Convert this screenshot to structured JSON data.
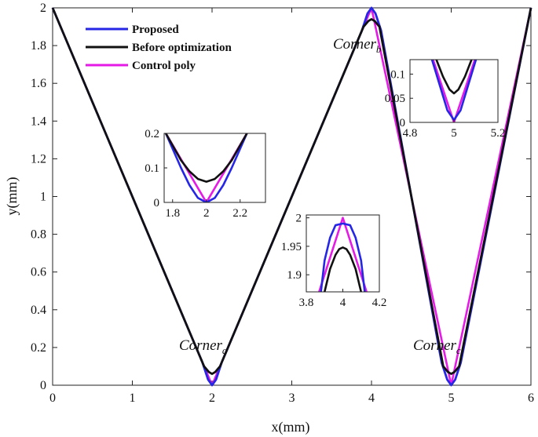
{
  "chart_data": {
    "type": "line",
    "title": "",
    "xlabel": "x(mm)",
    "ylabel": "y(mm)",
    "xlim": [
      0,
      6
    ],
    "ylim": [
      0,
      2
    ],
    "xticks": [
      "0",
      "1",
      "2",
      "3",
      "4",
      "5",
      "6"
    ],
    "yticks": [
      "0",
      "0.2",
      "0.4",
      "0.6",
      "0.8",
      "1",
      "1.2",
      "1.4",
      "1.6",
      "1.8",
      "2"
    ],
    "grid": false,
    "legend_position": "top-left",
    "series": [
      {
        "name": "Proposed",
        "color": "#2626e6",
        "x": [
          0,
          1.88,
          1.95,
          2,
          2.05,
          2.12,
          3.88,
          3.95,
          4,
          4.05,
          4.12,
          4.88,
          4.95,
          5,
          5.05,
          5.12,
          6
        ],
        "y": [
          2,
          0.12,
          0.03,
          0,
          0.03,
          0.12,
          1.88,
          1.97,
          2,
          1.97,
          1.88,
          0.12,
          0.03,
          0,
          0.03,
          0.12,
          2
        ]
      },
      {
        "name": "Before optimization",
        "color": "#111111",
        "x": [
          0,
          1.9,
          1.96,
          2,
          2.04,
          2.1,
          3.9,
          3.96,
          4,
          4.04,
          4.1,
          4.9,
          4.96,
          5,
          5.04,
          5.1,
          6
        ],
        "y": [
          2,
          0.1,
          0.07,
          0.06,
          0.07,
          0.1,
          1.9,
          1.93,
          1.94,
          1.93,
          1.9,
          0.1,
          0.07,
          0.06,
          0.07,
          0.1,
          2
        ]
      },
      {
        "name": "Control poly",
        "color": "#e61ae6",
        "x": [
          0,
          2,
          4,
          5,
          6
        ],
        "y": [
          2,
          0,
          2,
          0,
          2
        ]
      }
    ],
    "annotations": [
      {
        "base": "Corner",
        "sub": "a",
        "x": 2,
        "y": 0.3
      },
      {
        "base": "Corner",
        "sub": "b",
        "x": 4,
        "y": 1.85
      },
      {
        "base": "Corner",
        "sub": "c",
        "x": 5,
        "y": 0.3
      }
    ],
    "insets": [
      {
        "id": "a",
        "xlim": [
          1.75,
          2.35
        ],
        "ylim": [
          0,
          0.2
        ],
        "xticks": [
          "1.8",
          "2",
          "2.2"
        ],
        "yticks": [
          "0",
          "0.1",
          "0.2"
        ],
        "series": [
          {
            "name": "Proposed",
            "x": [
              1.76,
              1.85,
              1.9,
              1.95,
              2,
              2.05,
              2.1,
              2.15,
              2.24
            ],
            "y": [
              0.2,
              0.1,
              0.05,
              0.013,
              0,
              0.013,
              0.05,
              0.1,
              0.2
            ]
          },
          {
            "name": "Before optimization",
            "x": [
              1.76,
              1.85,
              1.9,
              1.95,
              2,
              2.05,
              2.1,
              2.15,
              2.24
            ],
            "y": [
              0.2,
              0.122,
              0.09,
              0.068,
              0.06,
              0.068,
              0.09,
              0.122,
              0.2
            ]
          },
          {
            "name": "Control poly",
            "x": [
              1.76,
              2,
              2.24
            ],
            "y": [
              0.2,
              0,
              0.2
            ]
          }
        ]
      },
      {
        "id": "b",
        "xlim": [
          3.8,
          4.2
        ],
        "ylim": [
          1.87,
          2.005
        ],
        "xticks": [
          "3.8",
          "4",
          "4.2"
        ],
        "yticks": [
          "1.9",
          "1.95",
          "2"
        ],
        "series": [
          {
            "name": "Proposed",
            "x": [
              3.88,
              3.9,
              3.93,
              3.96,
              4.0,
              4.04,
              4.07,
              4.1,
              4.12
            ],
            "y": [
              1.87,
              1.925,
              1.965,
              1.987,
              1.99,
              1.987,
              1.965,
              1.925,
              1.87
            ]
          },
          {
            "name": "Before optimization",
            "x": [
              3.9,
              3.93,
              3.96,
              3.98,
              4.0,
              4.02,
              4.04,
              4.07,
              4.1
            ],
            "y": [
              1.87,
              1.91,
              1.935,
              1.945,
              1.948,
              1.945,
              1.935,
              1.91,
              1.87
            ]
          },
          {
            "name": "Control poly",
            "x": [
              3.87,
              4.0,
              4.13
            ],
            "y": [
              1.87,
              2.0,
              1.87
            ]
          }
        ]
      },
      {
        "id": "c",
        "xlim": [
          4.8,
          5.2
        ],
        "ylim": [
          0,
          0.13
        ],
        "xticks": [
          "4.8",
          "5",
          "5.2"
        ],
        "yticks": [
          "0",
          "0.05",
          "0.1"
        ],
        "series": [
          {
            "name": "Proposed",
            "x": [
              4.9,
              4.94,
              4.97,
              5,
              5.03,
              5.06,
              5.1
            ],
            "y": [
              0.13,
              0.07,
              0.025,
              0.005,
              0.025,
              0.07,
              0.13
            ]
          },
          {
            "name": "Before optimization",
            "x": [
              4.92,
              4.95,
              4.98,
              5,
              5.02,
              5.05,
              5.08
            ],
            "y": [
              0.13,
              0.095,
              0.068,
              0.06,
              0.068,
              0.095,
              0.13
            ]
          },
          {
            "name": "Control poly",
            "x": [
              4.905,
              5,
              5.095
            ],
            "y": [
              0.13,
              0,
              0.13
            ]
          }
        ]
      }
    ]
  }
}
